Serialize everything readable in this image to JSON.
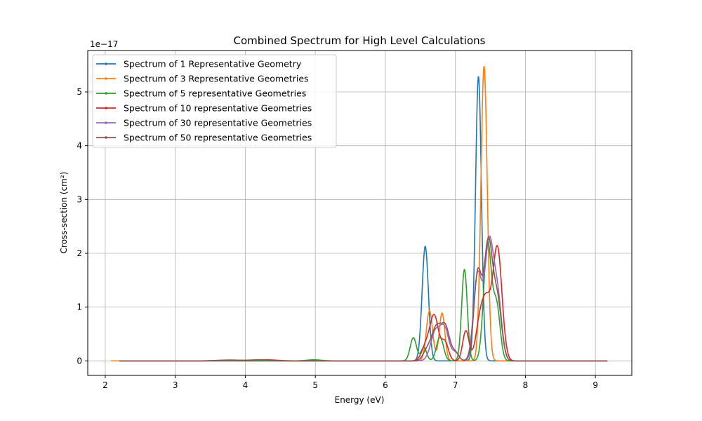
{
  "chart_data": {
    "type": "line",
    "title": "Combined Spectrum for High Level Calculations",
    "xlabel": "Energy (eV)",
    "ylabel": "Cross-section (cm²)",
    "y_offset_label": "1e−17",
    "xlim": [
      1.75,
      9.52
    ],
    "ylim": [
      -0.27,
      5.77
    ],
    "x_ticks": [
      2,
      3,
      4,
      5,
      6,
      7,
      8,
      9
    ],
    "y_ticks": [
      0,
      1,
      2,
      3,
      4,
      5
    ],
    "grid": true,
    "legend_position": "top-left",
    "x_range": [
      2.08,
      9.17
    ],
    "series": [
      {
        "name": "Spectrum of 1 Representative Geometry",
        "color": "#1f77b4",
        "x_start": 2.2,
        "peaks": [
          [
            6.57,
            2.13,
            0.045
          ],
          [
            7.33,
            5.29,
            0.042
          ]
        ]
      },
      {
        "name": "Spectrum of 3 Representative Geometries",
        "color": "#ff7f0e",
        "x_start": 2.08,
        "peaks": [
          [
            6.63,
            0.93,
            0.045
          ],
          [
            6.81,
            0.89,
            0.04
          ],
          [
            7.41,
            5.48,
            0.045
          ]
        ]
      },
      {
        "name": "Spectrum of 5 representative Geometries",
        "color": "#2ca02c",
        "x_start": 2.2,
        "peaks": [
          [
            4.98,
            0.02,
            0.1
          ],
          [
            6.4,
            0.43,
            0.045
          ],
          [
            6.55,
            0.25,
            0.04
          ],
          [
            6.78,
            0.44,
            0.05
          ],
          [
            7.13,
            1.7,
            0.04
          ],
          [
            7.46,
            2.2,
            0.055
          ],
          [
            7.59,
            1.0,
            0.05
          ]
        ]
      },
      {
        "name": "Spectrum of 10 representative Geometries",
        "color": "#d62728",
        "x_start": 2.2,
        "peaks": [
          [
            3.8,
            0.015,
            0.15
          ],
          [
            4.3,
            0.02,
            0.15
          ],
          [
            6.58,
            0.28,
            0.06
          ],
          [
            6.7,
            0.82,
            0.06
          ],
          [
            6.85,
            0.35,
            0.05
          ],
          [
            7.15,
            0.56,
            0.045
          ],
          [
            7.35,
            0.7,
            0.06
          ],
          [
            7.45,
            0.95,
            0.06
          ],
          [
            7.6,
            2.1,
            0.065
          ]
        ]
      },
      {
        "name": "Spectrum of 30 representative Geometries",
        "color": "#9467bd",
        "x_start": 2.2,
        "peaks": [
          [
            3.8,
            0.01,
            0.15
          ],
          [
            4.2,
            0.015,
            0.15
          ],
          [
            6.72,
            0.55,
            0.07
          ],
          [
            6.85,
            0.55,
            0.06
          ],
          [
            7.0,
            0.15,
            0.05
          ],
          [
            7.32,
            1.6,
            0.06
          ],
          [
            7.48,
            2.1,
            0.06
          ],
          [
            7.6,
            1.2,
            0.06
          ]
        ]
      },
      {
        "name": "Spectrum of 50 representative Geometries",
        "color": "#8c564b",
        "x_start": 2.2,
        "peaks": [
          [
            3.75,
            0.015,
            0.15
          ],
          [
            4.2,
            0.02,
            0.15
          ],
          [
            6.6,
            0.2,
            0.06
          ],
          [
            6.73,
            0.6,
            0.065
          ],
          [
            6.86,
            0.6,
            0.06
          ],
          [
            7.0,
            0.15,
            0.05
          ],
          [
            7.32,
            1.62,
            0.055
          ],
          [
            7.47,
            2.15,
            0.06
          ],
          [
            7.6,
            1.1,
            0.06
          ]
        ]
      }
    ]
  }
}
